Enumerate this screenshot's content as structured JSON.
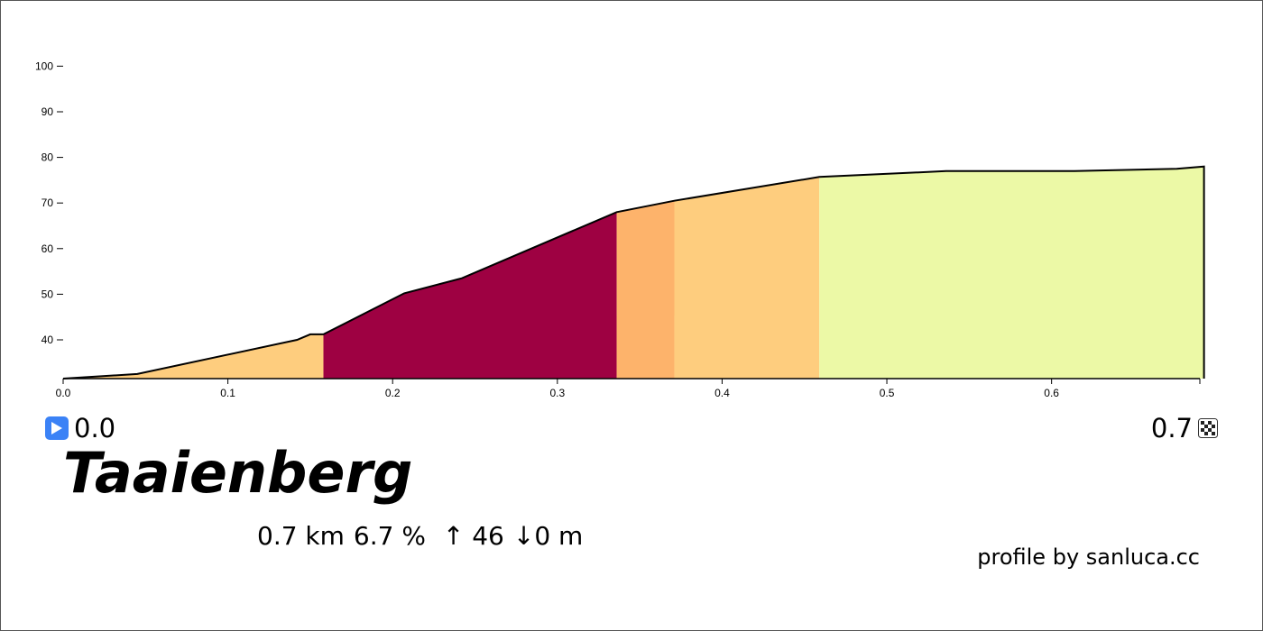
{
  "chart_data": {
    "type": "area",
    "title": "",
    "xlabel": "",
    "ylabel": "",
    "xlim": [
      0.0,
      0.69
    ],
    "ylim": [
      31.5,
      100
    ],
    "x_ticks": [
      "0.0",
      "0.1",
      "0.2",
      "0.3",
      "0.4",
      "0.5",
      "0.6"
    ],
    "y_ticks": [
      "40",
      "50",
      "60",
      "70",
      "80",
      "90",
      "100"
    ],
    "profile": [
      {
        "x": 0.0,
        "y": 31.5
      },
      {
        "x": 0.045,
        "y": 32.5
      },
      {
        "x": 0.142,
        "y": 40.0
      },
      {
        "x": 0.15,
        "y": 41.2
      },
      {
        "x": 0.158,
        "y": 41.2
      },
      {
        "x": 0.207,
        "y": 50.2
      },
      {
        "x": 0.242,
        "y": 53.5
      },
      {
        "x": 0.336,
        "y": 68.0
      },
      {
        "x": 0.371,
        "y": 70.5
      },
      {
        "x": 0.459,
        "y": 75.7
      },
      {
        "x": 0.536,
        "y": 77.0
      },
      {
        "x": 0.614,
        "y": 77.0
      },
      {
        "x": 0.676,
        "y": 77.5
      },
      {
        "x": 0.6925,
        "y": 78.0
      }
    ],
    "segments": [
      {
        "from": 0.0,
        "to": 0.158,
        "color": "#fecd7e"
      },
      {
        "from": 0.158,
        "to": 0.336,
        "color": "#9e0142"
      },
      {
        "from": 0.336,
        "to": 0.371,
        "color": "#fdb36b"
      },
      {
        "from": 0.371,
        "to": 0.459,
        "color": "#fecd7e"
      },
      {
        "from": 0.459,
        "to": 0.6925,
        "color": "#ecf9a6"
      }
    ]
  },
  "start": {
    "value": "0.0",
    "icon": "play-icon"
  },
  "end": {
    "value": "0.7",
    "icon": "checkered-flag-icon"
  },
  "climb": {
    "name": "Taaienberg",
    "distance": "0.7 km",
    "gradient": "6.7 %",
    "ascent": "↑ 46",
    "descent": "↓0 m"
  },
  "credit": "profile by sanluca.cc",
  "colors": {
    "line": "#000000",
    "play": "#3b82f6"
  }
}
